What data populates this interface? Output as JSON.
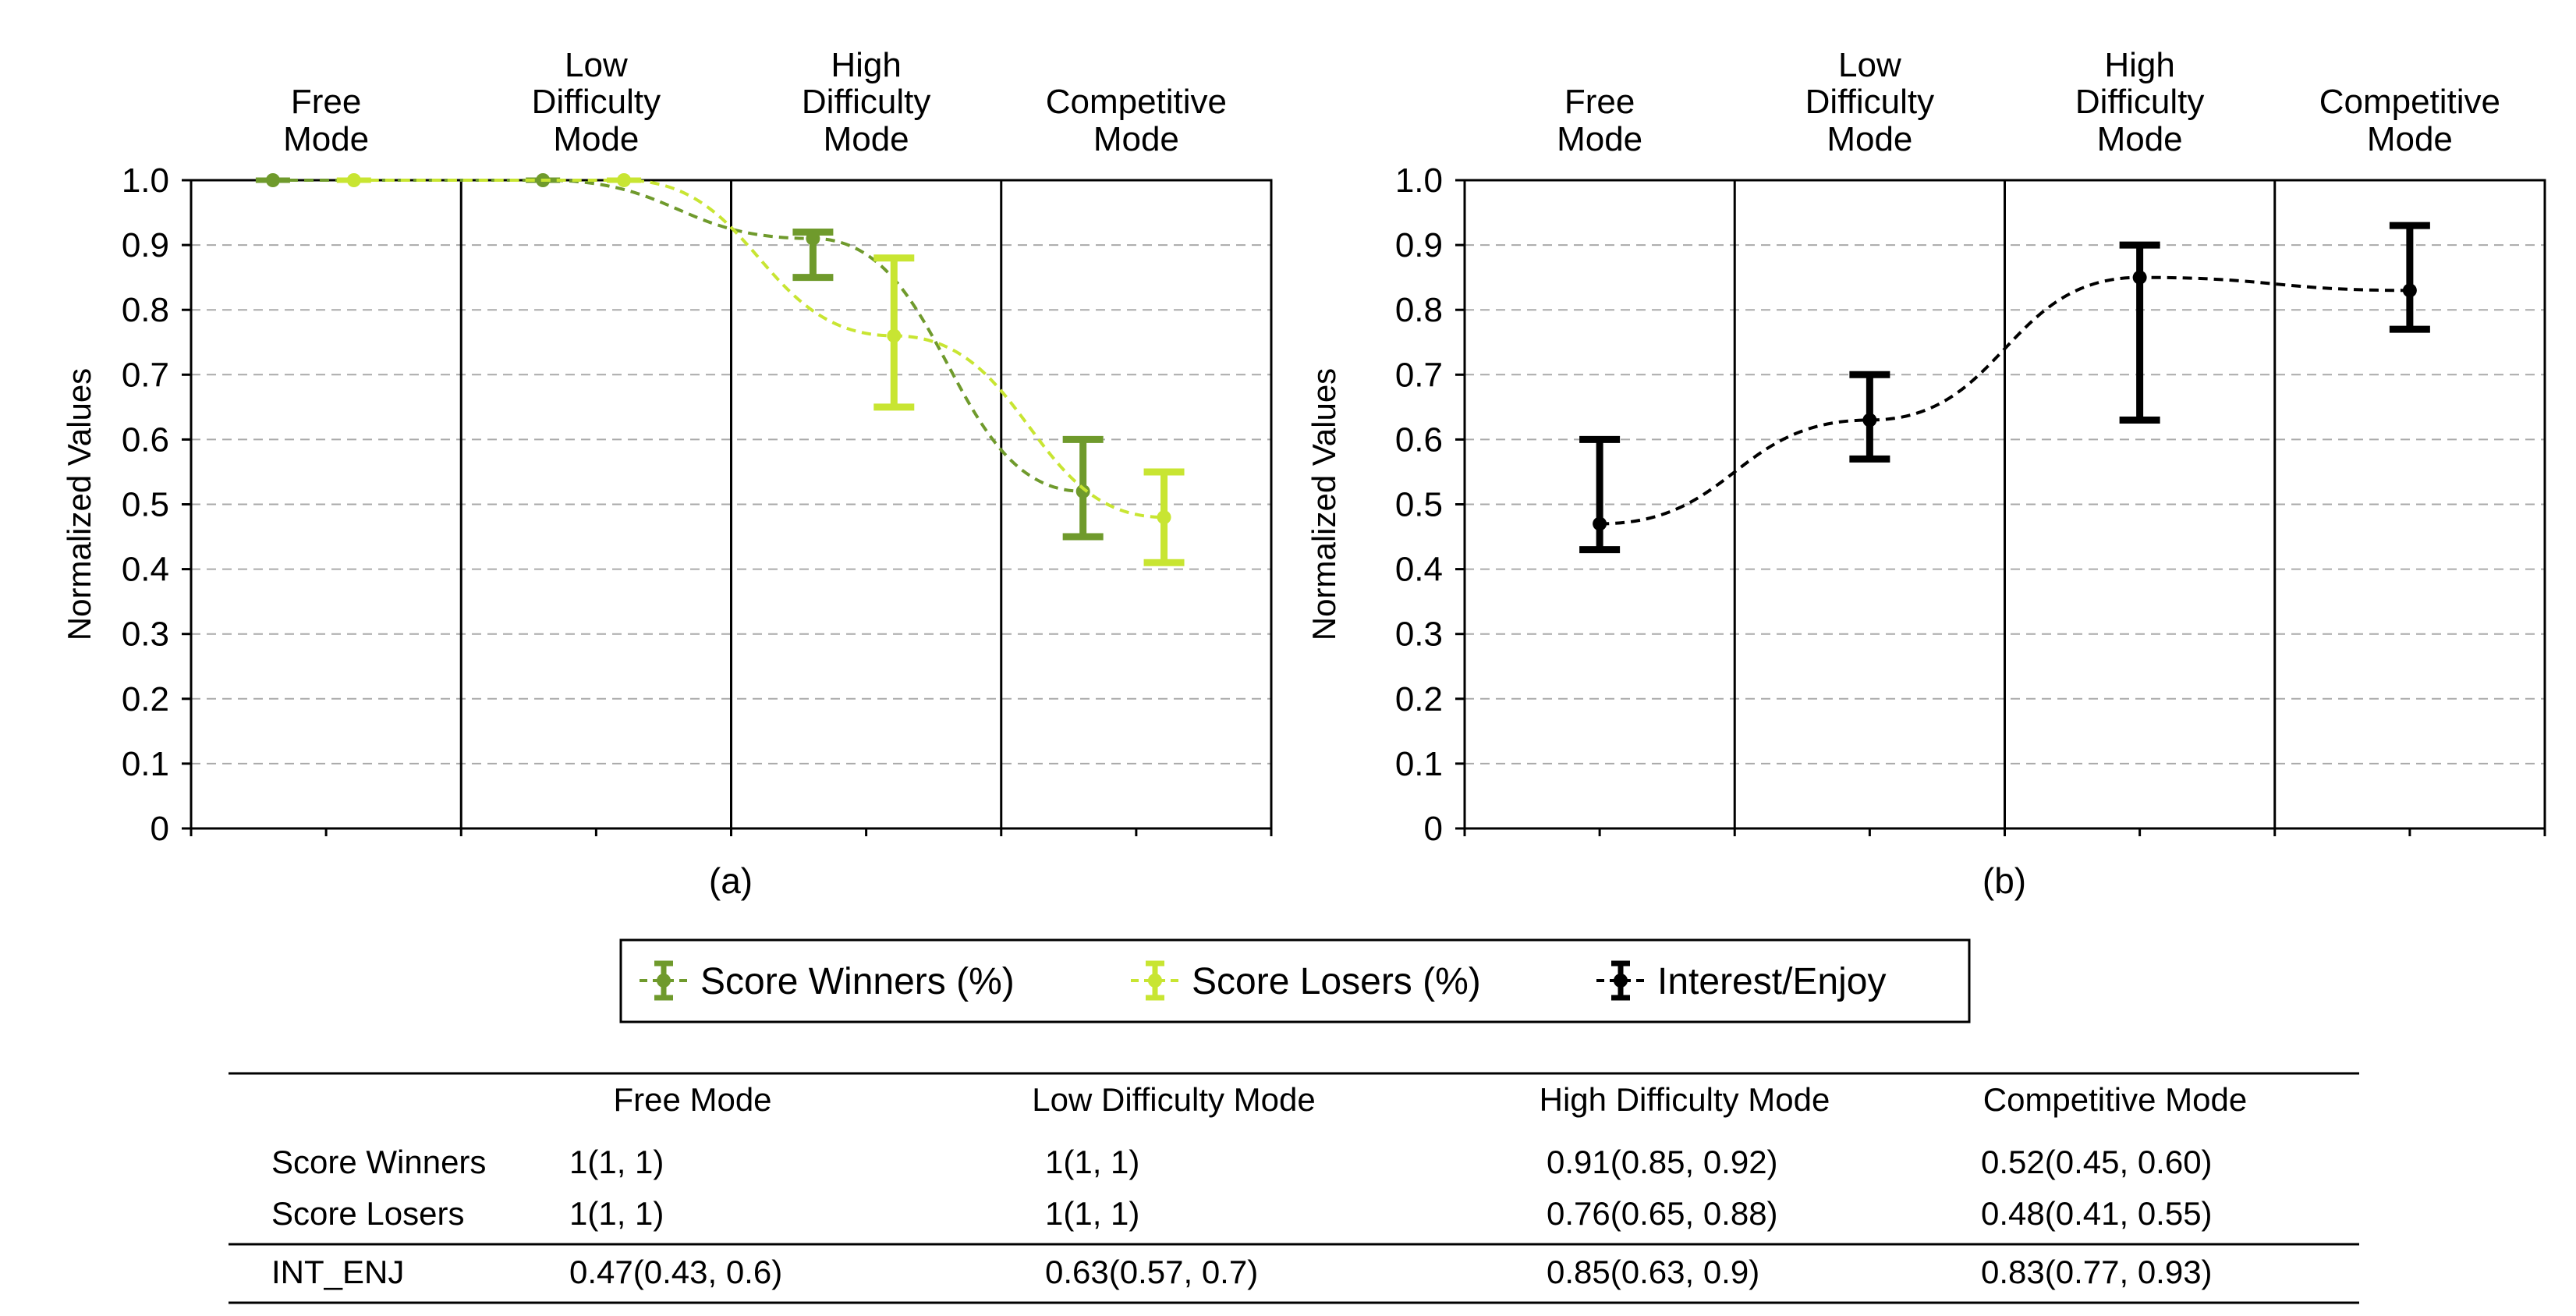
{
  "chart_data": [
    {
      "panel_label": "(a)",
      "type": "line",
      "ylabel": "Normalized Values",
      "ylim": [
        0,
        1.0
      ],
      "yticks": [
        "0",
        "0.1",
        "0.2",
        "0.3",
        "0.4",
        "0.5",
        "0.6",
        "0.7",
        "0.8",
        "0.9",
        "1.0"
      ],
      "categories": [
        [
          "Free",
          "Mode"
        ],
        [
          "Low",
          "Difficulty",
          "Mode"
        ],
        [
          "High",
          "Difficulty",
          "Mode"
        ],
        [
          "Competitive",
          "Mode"
        ]
      ],
      "series": [
        {
          "name": "Score Winners (%)",
          "color": "#6f9a2c",
          "values": [
            1,
            1,
            0.91,
            0.52
          ],
          "lower": [
            1,
            1,
            0.85,
            0.45
          ],
          "upper": [
            1,
            1,
            0.92,
            0.6
          ]
        },
        {
          "name": "Score Losers (%)",
          "color": "#c8e532",
          "values": [
            1,
            1,
            0.76,
            0.48
          ],
          "lower": [
            1,
            1,
            0.65,
            0.41
          ],
          "upper": [
            1,
            1,
            0.88,
            0.55
          ]
        }
      ]
    },
    {
      "panel_label": "(b)",
      "type": "line",
      "ylabel": "Normalized Values",
      "ylim": [
        0,
        1.0
      ],
      "yticks": [
        "0",
        "0.1",
        "0.2",
        "0.3",
        "0.4",
        "0.5",
        "0.6",
        "0.7",
        "0.8",
        "0.9",
        "1.0"
      ],
      "categories": [
        [
          "Free",
          "Mode"
        ],
        [
          "Low",
          "Difficulty",
          "Mode"
        ],
        [
          "High",
          "Difficulty",
          "Mode"
        ],
        [
          "Competitive",
          "Mode"
        ]
      ],
      "series": [
        {
          "name": "Interest/Enjoy",
          "color": "#000000",
          "values": [
            0.47,
            0.63,
            0.85,
            0.83
          ],
          "lower": [
            0.43,
            0.57,
            0.63,
            0.77
          ],
          "upper": [
            0.6,
            0.7,
            0.9,
            0.93
          ]
        }
      ]
    }
  ],
  "legend": [
    {
      "label": "Score Winners (%)",
      "color": "#6f9a2c"
    },
    {
      "label": "Score Losers (%)",
      "color": "#c8e532"
    },
    {
      "label": "Interest/Enjoy",
      "color": "#000000"
    }
  ],
  "table": {
    "headers": [
      "",
      "Free Mode",
      "Low Difficulty Mode",
      "High Difficulty Mode",
      "Competitive Mode"
    ],
    "rows": [
      [
        "Score Winners",
        "1(1, 1)",
        "1(1, 1)",
        "0.91(0.85, 0.92)",
        "0.52(0.45, 0.60)"
      ],
      [
        "Score Losers",
        "1(1, 1)",
        "1(1, 1)",
        "0.76(0.65, 0.88)",
        "0.48(0.41, 0.55)"
      ],
      [
        "INT_ENJ",
        "0.47(0.43, 0.6)",
        "0.63(0.57, 0.7)",
        "0.85(0.63, 0.9)",
        "0.83(0.77, 0.93)"
      ]
    ]
  }
}
